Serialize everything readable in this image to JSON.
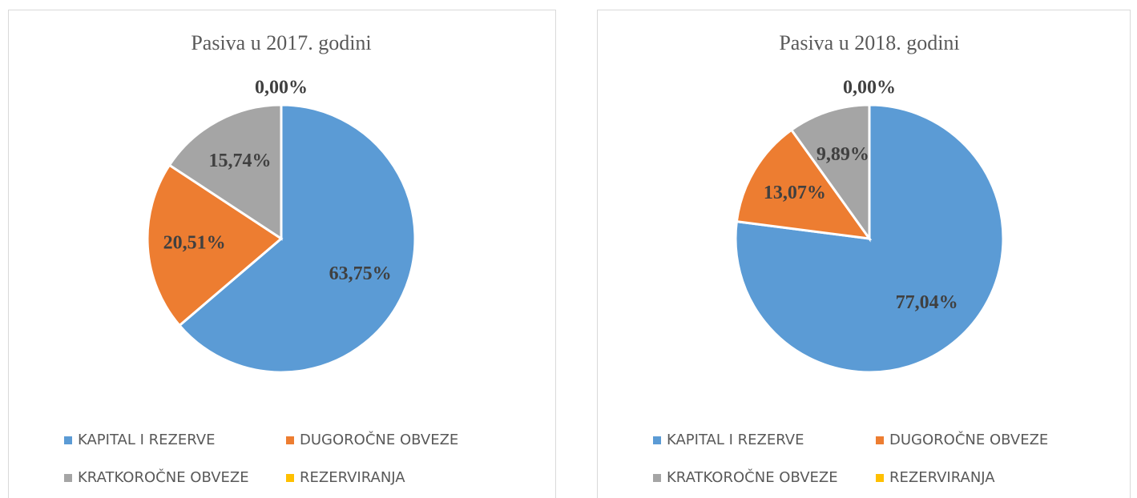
{
  "chart_data": [
    {
      "type": "pie",
      "title": "Pasiva u 2017. godini",
      "categories": [
        "KAPITAL I REZERVE",
        "DUGOROČNE OBVEZE",
        "KRATKOROČNE OBVEZE",
        "REZERVIRANJA"
      ],
      "values": [
        63.75,
        20.51,
        15.74,
        0.0
      ],
      "value_labels": [
        "63,75%",
        "20,51%",
        "15,74%",
        "0,00%"
      ],
      "colors": [
        "#5b9bd5",
        "#ed7d31",
        "#a5a5a5",
        "#ffc000"
      ]
    },
    {
      "type": "pie",
      "title": "Pasiva u 2018. godini",
      "categories": [
        "KAPITAL I REZERVE",
        "DUGOROČNE OBVEZE",
        "KRATKOROČNE OBVEZE",
        "REZERVIRANJA"
      ],
      "values": [
        77.04,
        13.07,
        9.89,
        0.0
      ],
      "value_labels": [
        "77,04%",
        "13,07%",
        "9,89%",
        "0,00%"
      ],
      "colors": [
        "#5b9bd5",
        "#ed7d31",
        "#a5a5a5",
        "#ffc000"
      ]
    }
  ]
}
